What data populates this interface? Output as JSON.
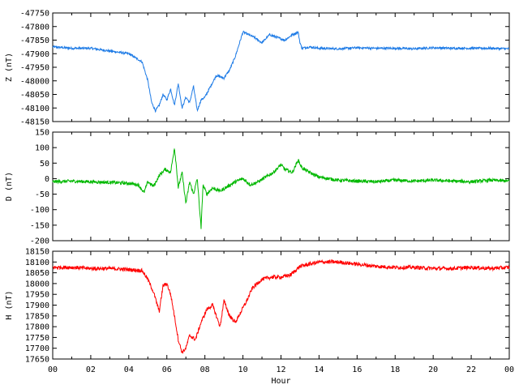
{
  "chart_data": [
    {
      "type": "line",
      "id": "z",
      "ylabel": "Z (nT)",
      "color": "#1e7be6",
      "ylim": [
        -48150,
        -47750
      ],
      "yticks": [
        -47750,
        -47800,
        -47850,
        -47900,
        -47950,
        -48000,
        -48050,
        -48100,
        -48150
      ],
      "ytick_labels": [
        "-47750",
        "-47800",
        "-47850",
        "-47900",
        "-47950",
        "-48000",
        "-48050",
        "-48100",
        "-48150"
      ],
      "series": [
        {
          "x": [
            0,
            1,
            2,
            3,
            4,
            4.7,
            5.0,
            5.2,
            5.4,
            5.6,
            5.8,
            6.0,
            6.2,
            6.4,
            6.6,
            6.8,
            7.0,
            7.2,
            7.4,
            7.6,
            7.8,
            8.0,
            8.3,
            8.6,
            9.0,
            9.3,
            9.6,
            10.0,
            10.3,
            10.6,
            11.0,
            11.4,
            11.8,
            12.2,
            12.6,
            12.9,
            13.0,
            13.1,
            13.5,
            14,
            15,
            16,
            17,
            18,
            19,
            20,
            21,
            22,
            23,
            24
          ],
          "y": [
            -47875,
            -47880,
            -47880,
            -47890,
            -47900,
            -47930,
            -48000,
            -48080,
            -48110,
            -48090,
            -48050,
            -48070,
            -48030,
            -48090,
            -48010,
            -48100,
            -48060,
            -48080,
            -48020,
            -48110,
            -48070,
            -48060,
            -48020,
            -47980,
            -47990,
            -47960,
            -47910,
            -47820,
            -47830,
            -47840,
            -47860,
            -47830,
            -47840,
            -47850,
            -47830,
            -47820,
            -47860,
            -47880,
            -47875,
            -47880,
            -47882,
            -47878,
            -47880,
            -47880,
            -47882,
            -47878,
            -47880,
            -47880,
            -47880,
            -47882
          ]
        }
      ]
    },
    {
      "type": "line",
      "id": "d",
      "ylabel": "D (nT)",
      "color": "#00b800",
      "ylim": [
        -200,
        150
      ],
      "yticks": [
        150,
        100,
        50,
        0,
        -50,
        -100,
        -150,
        -200
      ],
      "ytick_labels": [
        "150",
        "100",
        "50",
        "0",
        "-50",
        "-100",
        "-150",
        "-200"
      ],
      "series": [
        {
          "x": [
            0,
            1,
            2,
            3,
            4,
            4.5,
            4.8,
            5.0,
            5.3,
            5.6,
            5.9,
            6.2,
            6.4,
            6.5,
            6.6,
            6.8,
            7.0,
            7.2,
            7.4,
            7.6,
            7.8,
            7.9,
            8.1,
            8.4,
            8.8,
            9.2,
            9.6,
            10.0,
            10.4,
            10.8,
            11.2,
            11.6,
            12.0,
            12.2,
            12.6,
            12.9,
            13.1,
            13.5,
            14,
            15,
            16,
            17,
            18,
            19,
            20,
            21,
            22,
            23,
            24
          ],
          "y": [
            -10,
            -8,
            -10,
            -12,
            -15,
            -20,
            -45,
            -10,
            -25,
            10,
            30,
            20,
            100,
            40,
            -30,
            20,
            -80,
            -10,
            -50,
            0,
            -160,
            -20,
            -50,
            -30,
            -40,
            -25,
            -10,
            0,
            -20,
            -10,
            5,
            20,
            45,
            30,
            20,
            60,
            35,
            20,
            5,
            -5,
            -8,
            -10,
            -5,
            -8,
            -5,
            -8,
            -10,
            -5,
            -8
          ]
        }
      ]
    },
    {
      "type": "line",
      "id": "h",
      "ylabel": "H (nT)",
      "color": "#ff0000",
      "xlabel": "Hour",
      "ylim": [
        17650,
        18150
      ],
      "yticks": [
        18150,
        18100,
        18050,
        18000,
        17950,
        17900,
        17850,
        17800,
        17750,
        17700,
        17650
      ],
      "ytick_labels": [
        "18150",
        "18100",
        "18050",
        "18000",
        "17950",
        "17900",
        "17850",
        "17800",
        "17750",
        "17700",
        "17650"
      ],
      "series": [
        {
          "x": [
            0,
            1,
            2,
            3,
            4,
            4.7,
            5.0,
            5.3,
            5.6,
            5.8,
            6.0,
            6.2,
            6.4,
            6.6,
            6.8,
            7.0,
            7.2,
            7.5,
            7.8,
            8.1,
            8.4,
            8.8,
            9.0,
            9.3,
            9.6,
            9.9,
            10.2,
            10.5,
            11.0,
            11.5,
            12.0,
            12.5,
            13.0,
            13.5,
            14.0,
            15.0,
            16.0,
            17,
            18,
            19,
            20,
            21,
            22,
            23,
            24
          ],
          "y": [
            18075,
            18075,
            18070,
            18070,
            18065,
            18060,
            18020,
            17960,
            17870,
            17990,
            18000,
            17950,
            17850,
            17740,
            17680,
            17700,
            17760,
            17740,
            17820,
            17880,
            17900,
            17800,
            17920,
            17850,
            17820,
            17870,
            17920,
            17980,
            18020,
            18030,
            18030,
            18040,
            18080,
            18090,
            18100,
            18100,
            18090,
            18080,
            18075,
            18075,
            18070,
            18070,
            18075,
            18070,
            18075
          ]
        }
      ]
    }
  ],
  "x_axis": {
    "xlim": [
      0,
      24
    ],
    "tick_labels": [
      "00",
      "02",
      "04",
      "06",
      "08",
      "10",
      "12",
      "14",
      "16",
      "18",
      "20",
      "22",
      "00"
    ],
    "xlabel": "Hour"
  }
}
